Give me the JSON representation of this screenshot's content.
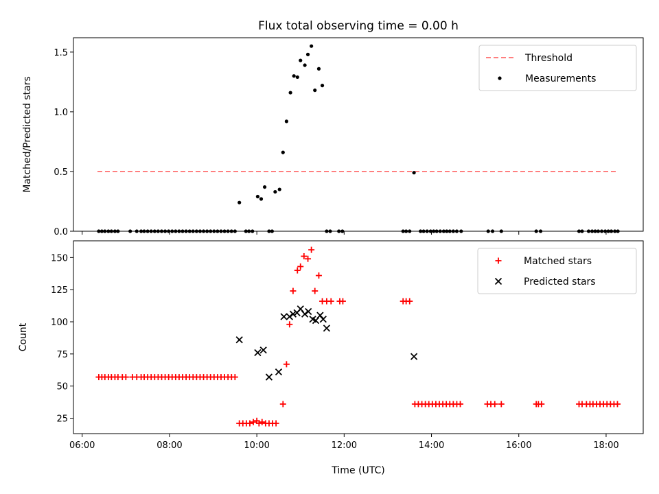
{
  "title": "Flux total observing time = 0.00 h",
  "colors": {
    "threshold": "#ff7f7f",
    "measurements": "#000000",
    "matched": "#ff0000",
    "predicted": "#000000"
  },
  "chart_data": [
    {
      "type": "scatter",
      "ylabel": "Matched/Predicted stars",
      "xlabel": "",
      "xlim": [
        5.8,
        18.85
      ],
      "ylim": [
        0,
        1.62
      ],
      "yticks": [
        0.0,
        0.5,
        1.0,
        1.5
      ],
      "ytick_labels": [
        "0.0",
        "0.5",
        "1.0",
        "1.5"
      ],
      "legend_position": "top-right",
      "series": [
        {
          "name": "Threshold",
          "style": "dashed-line",
          "x": [
            6.35,
            18.27
          ],
          "y": [
            0.5,
            0.5
          ]
        },
        {
          "name": "Measurements",
          "style": "dot",
          "x": [
            6.38,
            6.45,
            6.52,
            6.6,
            6.67,
            6.75,
            6.82,
            7.1,
            7.25,
            7.35,
            7.42,
            7.5,
            7.58,
            7.66,
            7.74,
            7.82,
            7.9,
            7.98,
            8.06,
            8.14,
            8.22,
            8.3,
            8.38,
            8.46,
            8.54,
            8.62,
            8.7,
            8.78,
            8.86,
            8.94,
            9.02,
            9.1,
            9.18,
            9.26,
            9.34,
            9.42,
            9.5,
            9.6,
            9.75,
            9.82,
            9.9,
            10.02,
            10.1,
            10.18,
            10.28,
            10.35,
            10.42,
            10.52,
            10.6,
            10.68,
            10.77,
            10.85,
            10.93,
            11.0,
            11.1,
            11.17,
            11.25,
            11.33,
            11.42,
            11.5,
            11.6,
            11.68,
            11.88,
            11.96,
            13.35,
            13.42,
            13.5,
            13.6,
            13.75,
            13.82,
            13.9,
            13.98,
            14.05,
            14.12,
            14.2,
            14.28,
            14.35,
            14.42,
            14.5,
            14.58,
            14.68,
            15.3,
            15.4,
            15.6,
            16.4,
            16.5,
            17.38,
            17.45,
            17.6,
            17.68,
            17.75,
            17.82,
            17.9,
            17.98,
            18.05,
            18.12,
            18.2,
            18.27
          ],
          "y": [
            0,
            0,
            0,
            0,
            0,
            0,
            0,
            0,
            0,
            0,
            0,
            0,
            0,
            0,
            0,
            0,
            0,
            0,
            0,
            0,
            0,
            0,
            0,
            0,
            0,
            0,
            0,
            0,
            0,
            0,
            0,
            0,
            0,
            0,
            0,
            0,
            0,
            0.24,
            0,
            0,
            0,
            0.29,
            0.27,
            0.37,
            0,
            0,
            0.33,
            0.35,
            0.66,
            0.92,
            1.16,
            1.3,
            1.29,
            1.43,
            1.39,
            1.48,
            1.55,
            1.18,
            1.36,
            1.22,
            0,
            0,
            0,
            0,
            0,
            0,
            0,
            0.49,
            0,
            0,
            0,
            0,
            0,
            0,
            0,
            0,
            0,
            0,
            0,
            0,
            0,
            0,
            0,
            0,
            0,
            0,
            0,
            0,
            0,
            0,
            0,
            0,
            0,
            0,
            0,
            0,
            0,
            0
          ]
        }
      ]
    },
    {
      "type": "scatter",
      "ylabel": "Count",
      "xlabel": "Time (UTC)",
      "xlim": [
        5.8,
        18.85
      ],
      "ylim": [
        13,
        163
      ],
      "yticks": [
        25,
        50,
        75,
        100,
        125,
        150
      ],
      "ytick_labels": [
        "25",
        "50",
        "75",
        "100",
        "125",
        "150"
      ],
      "xticks": [
        6,
        8,
        10,
        12,
        14,
        16,
        18
      ],
      "xtick_labels": [
        "06:00",
        "08:00",
        "10:00",
        "12:00",
        "14:00",
        "16:00",
        "18:00"
      ],
      "legend_position": "top-right",
      "series": [
        {
          "name": "Matched stars",
          "style": "plus",
          "x": [
            6.38,
            6.45,
            6.52,
            6.6,
            6.67,
            6.75,
            6.82,
            6.92,
            7.0,
            7.15,
            7.25,
            7.35,
            7.42,
            7.5,
            7.58,
            7.66,
            7.74,
            7.82,
            7.9,
            7.98,
            8.06,
            8.14,
            8.22,
            8.3,
            8.38,
            8.46,
            8.54,
            8.62,
            8.7,
            8.78,
            8.86,
            8.94,
            9.02,
            9.1,
            9.18,
            9.26,
            9.34,
            9.42,
            9.5,
            9.6,
            9.68,
            9.76,
            9.84,
            9.92,
            10.0,
            10.05,
            10.12,
            10.2,
            10.28,
            10.36,
            10.44,
            10.6,
            10.68,
            10.75,
            10.83,
            10.93,
            11.0,
            11.08,
            11.17,
            11.25,
            11.33,
            11.42,
            11.5,
            11.6,
            11.7,
            11.9,
            11.97,
            13.35,
            13.42,
            13.5,
            13.62,
            13.7,
            13.78,
            13.86,
            13.94,
            14.02,
            14.1,
            14.18,
            14.26,
            14.34,
            14.42,
            14.5,
            14.58,
            14.66,
            15.28,
            15.36,
            15.45,
            15.6,
            16.4,
            16.45,
            16.52,
            17.38,
            17.45,
            17.55,
            17.63,
            17.7,
            17.78,
            17.86,
            17.94,
            18.02,
            18.1,
            18.18,
            18.26
          ],
          "y": [
            57,
            57,
            57,
            57,
            57,
            57,
            57,
            57,
            57,
            57,
            57,
            57,
            57,
            57,
            57,
            57,
            57,
            57,
            57,
            57,
            57,
            57,
            57,
            57,
            57,
            57,
            57,
            57,
            57,
            57,
            57,
            57,
            57,
            57,
            57,
            57,
            57,
            57,
            57,
            21,
            21,
            21,
            21,
            22,
            23,
            21,
            22,
            21,
            21,
            21,
            21,
            36,
            67,
            98,
            124,
            140,
            143,
            151,
            149,
            156,
            124,
            136,
            116,
            116,
            116,
            116,
            116,
            116,
            116,
            116,
            36,
            36,
            36,
            36,
            36,
            36,
            36,
            36,
            36,
            36,
            36,
            36,
            36,
            36,
            36,
            36,
            36,
            36,
            36,
            36,
            36,
            36,
            36,
            36,
            36,
            36,
            36,
            36,
            36,
            36,
            36,
            36,
            36
          ]
        },
        {
          "name": "Predicted stars",
          "style": "x",
          "x": [
            9.6,
            10.02,
            10.15,
            10.28,
            10.5,
            10.62,
            10.75,
            10.83,
            10.92,
            11.0,
            11.1,
            11.18,
            11.28,
            11.35,
            11.45,
            11.52,
            11.6,
            13.6
          ],
          "y": [
            86,
            76,
            78,
            57,
            61,
            104,
            104,
            106,
            107,
            110,
            106,
            108,
            102,
            101,
            105,
            102,
            95,
            73
          ]
        }
      ]
    }
  ]
}
